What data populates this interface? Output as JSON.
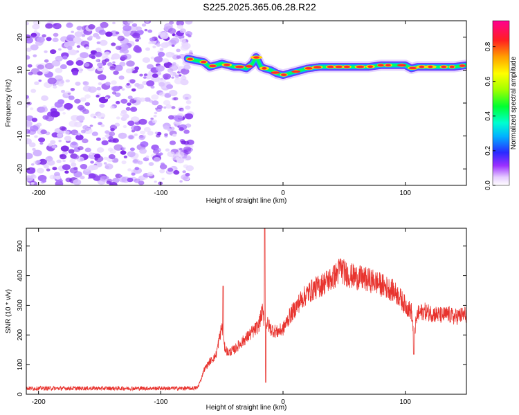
{
  "title": "S225.2025.365.06.28.R22",
  "chart_data": [
    {
      "type": "heatmap",
      "xlabel": "Height of straight line (km)",
      "ylabel": "Frequency (Hz)",
      "xlim": [
        -210,
        150
      ],
      "ylim": [
        -25,
        25
      ],
      "xticks": [
        -200,
        -100,
        0,
        100
      ],
      "yticks": [
        -20,
        -10,
        0,
        10,
        20
      ],
      "colorbar": {
        "label": "Normalized spectral amplitude",
        "range": [
          0,
          0.95
        ],
        "ticks": [
          0.0,
          0.2,
          0.4,
          0.6,
          0.8
        ]
      },
      "noise_region_x": [
        -210,
        -75
      ],
      "signal_track": {
        "x": [
          -78,
          -72,
          -65,
          -60,
          -55,
          -50,
          -45,
          -40,
          -35,
          -30,
          -25,
          -22,
          -18,
          -15,
          -10,
          -5,
          0,
          5,
          10,
          15,
          20,
          30,
          40,
          50,
          60,
          70,
          80,
          90,
          100,
          105,
          110,
          120,
          130,
          140,
          150
        ],
        "freq": [
          13.5,
          13,
          12.5,
          11,
          11.5,
          12,
          11.5,
          11,
          11,
          10.5,
          12,
          14,
          11,
          10.5,
          10,
          9,
          8.5,
          9,
          9.5,
          10,
          10.5,
          11,
          11,
          11,
          11,
          11,
          11.5,
          11.5,
          11.5,
          10.5,
          11,
          11,
          11,
          11,
          11.5
        ]
      }
    },
    {
      "type": "line",
      "xlabel": "Height of straight line (km)",
      "ylabel": "SNR (10 * v/v)",
      "xlim": [
        -210,
        150
      ],
      "ylim": [
        0,
        560
      ],
      "xticks": [
        -200,
        -100,
        0,
        100
      ],
      "yticks": [
        0,
        100,
        200,
        300,
        400,
        500
      ],
      "series": [
        {
          "color": "#e8332e",
          "x": [
            -210,
            -190,
            -170,
            -150,
            -130,
            -110,
            -90,
            -75,
            -70,
            -67,
            -65,
            -60,
            -55,
            -52,
            -50,
            -48,
            -45,
            -40,
            -35,
            -30,
            -25,
            -20,
            -17,
            -15,
            -13,
            -10,
            -5,
            0,
            5,
            10,
            15,
            20,
            25,
            30,
            35,
            40,
            45,
            47,
            50,
            55,
            60,
            65,
            70,
            75,
            80,
            85,
            90,
            95,
            100,
            105,
            107,
            110,
            115,
            120,
            125,
            130,
            135,
            140,
            145,
            150
          ],
          "y": [
            20,
            20,
            20,
            20,
            20,
            20,
            20,
            20,
            22,
            50,
            80,
            110,
            130,
            190,
            230,
            160,
            140,
            150,
            170,
            190,
            210,
            230,
            280,
            240,
            240,
            220,
            210,
            220,
            260,
            290,
            320,
            340,
            355,
            365,
            380,
            390,
            410,
            430,
            410,
            400,
            395,
            390,
            385,
            380,
            370,
            360,
            350,
            330,
            300,
            280,
            200,
            270,
            280,
            275,
            270,
            265,
            270,
            260,
            265,
            270
          ]
        }
      ]
    }
  ]
}
